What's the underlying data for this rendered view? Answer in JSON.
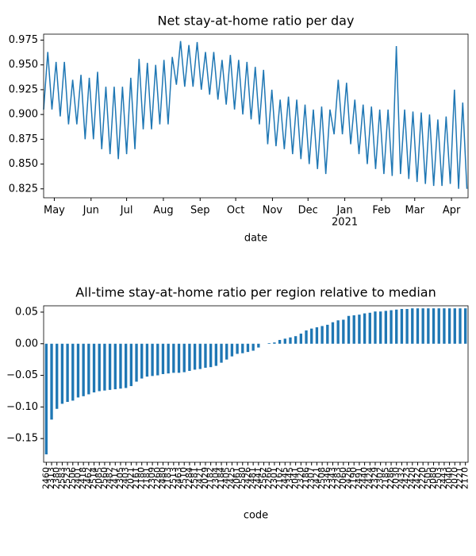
{
  "chart_data": [
    {
      "type": "line",
      "title": "Net stay-at-home ratio per day",
      "x_label": "date",
      "x": [
        0,
        3.5,
        7,
        10.5,
        14,
        17.5,
        21,
        24.5,
        28,
        31.5,
        35,
        38.5,
        42,
        45.5,
        49,
        52.5,
        56,
        59.5,
        63,
        66.5,
        70,
        73.5,
        77,
        80.5,
        84,
        87.5,
        91,
        94.5,
        98,
        101.5,
        105,
        108.5,
        112,
        115.5,
        119,
        122.5,
        126,
        129.5,
        133,
        136.5,
        140,
        143.5,
        147,
        150.5,
        154,
        157.5,
        161,
        164.5,
        168,
        171.5,
        175,
        178.5,
        182,
        185.5,
        189,
        192.5,
        196,
        199.5,
        203,
        206.5,
        210,
        213.5,
        217,
        220.5,
        224,
        227.5,
        231,
        234.5,
        238,
        241.5,
        245,
        248.5,
        252,
        255.5,
        259,
        262.5,
        266,
        269.5,
        273,
        276.5,
        280,
        283.5,
        287,
        290.5,
        294,
        297.5,
        301,
        304.5,
        308,
        311.5,
        315,
        318.5,
        322,
        325.5,
        329,
        332.5,
        336,
        339.5,
        343,
        346.5,
        350,
        353.5,
        357
      ],
      "series": [
        {
          "name": "ratio",
          "color": "#1f77b4",
          "values": [
            0.905,
            0.963,
            0.905,
            0.953,
            0.898,
            0.953,
            0.89,
            0.935,
            0.89,
            0.94,
            0.875,
            0.937,
            0.875,
            0.943,
            0.865,
            0.928,
            0.86,
            0.928,
            0.855,
            0.928,
            0.86,
            0.937,
            0.865,
            0.956,
            0.885,
            0.952,
            0.885,
            0.95,
            0.89,
            0.955,
            0.89,
            0.958,
            0.93,
            0.974,
            0.928,
            0.97,
            0.928,
            0.973,
            0.925,
            0.963,
            0.92,
            0.963,
            0.915,
            0.955,
            0.91,
            0.96,
            0.905,
            0.955,
            0.9,
            0.953,
            0.895,
            0.948,
            0.89,
            0.945,
            0.87,
            0.925,
            0.868,
            0.915,
            0.865,
            0.918,
            0.86,
            0.915,
            0.855,
            0.91,
            0.85,
            0.905,
            0.845,
            0.908,
            0.84,
            0.905,
            0.88,
            0.935,
            0.88,
            0.932,
            0.87,
            0.915,
            0.86,
            0.91,
            0.85,
            0.908,
            0.845,
            0.905,
            0.84,
            0.905,
            0.838,
            0.969,
            0.84,
            0.905,
            0.835,
            0.903,
            0.832,
            0.902,
            0.83,
            0.9,
            0.828,
            0.895,
            0.828,
            0.898,
            0.83,
            0.925,
            0.825,
            0.912,
            0.825
          ]
        }
      ],
      "xlim": [
        0,
        358
      ],
      "xticks": [
        {
          "value": 9,
          "label": "May"
        },
        {
          "value": 40,
          "label": "Jun"
        },
        {
          "value": 70,
          "label": "Jul"
        },
        {
          "value": 101,
          "label": "Aug"
        },
        {
          "value": 132,
          "label": "Sep"
        },
        {
          "value": 162,
          "label": "Oct"
        },
        {
          "value": 193,
          "label": "Nov"
        },
        {
          "value": 223,
          "label": "Dec"
        },
        {
          "value": 254,
          "label": "Jan"
        },
        {
          "value": 285,
          "label": "Feb"
        },
        {
          "value": 313,
          "label": "Mar"
        },
        {
          "value": 344,
          "label": "Apr"
        }
      ],
      "year_label": "2021",
      "ylim": [
        0.816,
        0.981
      ],
      "yticks": [
        {
          "value": 0.825,
          "label": "0.825"
        },
        {
          "value": 0.85,
          "label": "0.850"
        },
        {
          "value": 0.875,
          "label": "0.875"
        },
        {
          "value": 0.9,
          "label": "0.900"
        },
        {
          "value": 0.925,
          "label": "0.925"
        },
        {
          "value": 0.95,
          "label": "0.950"
        },
        {
          "value": 0.975,
          "label": "0.975"
        }
      ]
    },
    {
      "type": "bar",
      "title": "All-time stay-at-home ratio per region relative to median",
      "x_label": "code",
      "color": "#1f77b4",
      "categories": [
        "2460",
        "2313",
        "2380",
        "2583",
        "2523",
        "2506",
        "2401",
        "2418",
        "2462",
        "2514",
        "2085",
        "2560",
        "2482",
        "2417",
        "2305",
        "2403",
        "2021",
        "2161",
        "2180",
        "2181",
        "2309",
        "2260",
        "2480",
        "2183",
        "2513",
        "2463",
        "2510",
        "2284",
        "2581",
        "2421",
        "2029",
        "2182",
        "2304",
        "2184",
        "2405",
        "2425",
        "2061",
        "2580",
        "2426",
        "2481",
        "2441",
        "2562",
        "2266",
        "2301",
        "2162",
        "2445",
        "2345",
        "2041",
        "2320",
        "2186",
        "2307",
        "2421",
        "2508",
        "2346",
        "2343",
        "2283",
        "2060",
        "2426",
        "2190",
        "2491",
        "2440",
        "2424",
        "2329",
        "2302",
        "2185",
        "2286",
        "2030",
        "2432",
        "2423",
        "2420",
        "2422",
        "2220",
        "2505",
        "2080",
        "2503",
        "2443",
        "2040",
        "2070",
        "2221",
        "2170"
      ],
      "values": [
        -0.175,
        -0.12,
        -0.103,
        -0.095,
        -0.092,
        -0.09,
        -0.085,
        -0.083,
        -0.08,
        -0.077,
        -0.075,
        -0.074,
        -0.073,
        -0.072,
        -0.071,
        -0.07,
        -0.067,
        -0.06,
        -0.055,
        -0.052,
        -0.051,
        -0.05,
        -0.048,
        -0.047,
        -0.046,
        -0.046,
        -0.045,
        -0.043,
        -0.041,
        -0.04,
        -0.038,
        -0.037,
        -0.035,
        -0.03,
        -0.025,
        -0.02,
        -0.016,
        -0.015,
        -0.013,
        -0.011,
        -0.006,
        0,
        0.001,
        0.002,
        0.006,
        0.008,
        0.01,
        0.012,
        0.016,
        0.021,
        0.024,
        0.026,
        0.028,
        0.03,
        0.034,
        0.037,
        0.038,
        0.044,
        0.045,
        0.046,
        0.048,
        0.049,
        0.051,
        0.051,
        0.052,
        0.053,
        0.054,
        0.055,
        0.055,
        0.056,
        0.056,
        0.056,
        0.056,
        0.056,
        0.056,
        0.056,
        0.056,
        0.056,
        0.056,
        0.056
      ],
      "ylim": [
        -0.1875,
        0.06
      ],
      "yticks": [
        {
          "value": -0.15,
          "label": "−0.15"
        },
        {
          "value": -0.1,
          "label": "−0.10"
        },
        {
          "value": -0.05,
          "label": "−0.05"
        },
        {
          "value": 0,
          "label": "0.00"
        },
        {
          "value": 0.05,
          "label": "0.05"
        }
      ]
    }
  ]
}
